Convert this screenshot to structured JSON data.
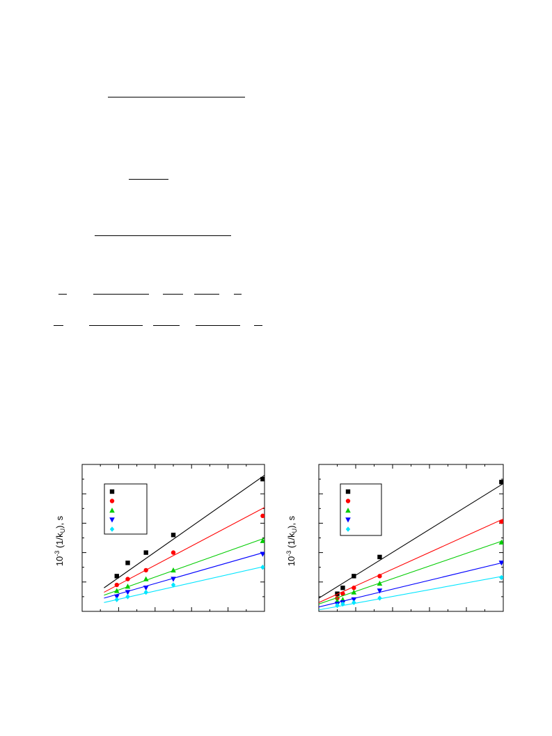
{
  "colors": {
    "black": "#000000",
    "red": "#ff0000",
    "green": "#00cc00",
    "blue": "#0000ff",
    "cyan": "#00e5ff"
  },
  "chart_data": [
    {
      "type": "scatter",
      "ylabel_main": "10",
      "ylabel_sup": "-3",
      "ylabel_mid": " (1/k",
      "ylabel_sub": "U",
      "ylabel_tail": "), s",
      "xlim": [
        0,
        10
      ],
      "ylim": [
        0,
        10
      ],
      "grid": false,
      "legend_position": "top-left",
      "series": [
        {
          "color": "black",
          "marker": "square",
          "x": [
            1.9,
            2.5,
            3.5,
            5.0,
            9.9
          ],
          "y": [
            2.4,
            3.3,
            4.0,
            5.2,
            9.0
          ],
          "fit": [
            [
              1.2,
              1.6
            ],
            [
              10.5,
              9.7
            ]
          ]
        },
        {
          "color": "red",
          "marker": "circle",
          "x": [
            1.9,
            2.5,
            3.5,
            5.0,
            9.9
          ],
          "y": [
            1.8,
            2.2,
            2.8,
            4.0,
            6.5
          ],
          "fit": [
            [
              1.2,
              1.3
            ],
            [
              10.5,
              7.4
            ]
          ]
        },
        {
          "color": "green",
          "marker": "triangle-up",
          "x": [
            1.9,
            2.5,
            3.5,
            5.0,
            9.9
          ],
          "y": [
            1.4,
            1.7,
            2.2,
            2.8,
            4.8
          ],
          "fit": [
            [
              1.2,
              1.1
            ],
            [
              10.5,
              5.2
            ]
          ]
        },
        {
          "color": "blue",
          "marker": "triangle-down",
          "x": [
            1.9,
            2.5,
            3.5,
            5.0,
            9.9
          ],
          "y": [
            1.0,
            1.3,
            1.6,
            2.2,
            3.9
          ],
          "fit": [
            [
              1.2,
              0.9
            ],
            [
              10.5,
              4.2
            ]
          ]
        },
        {
          "color": "cyan",
          "marker": "diamond",
          "x": [
            1.9,
            2.5,
            3.5,
            5.0,
            9.9
          ],
          "y": [
            0.8,
            1.0,
            1.3,
            1.8,
            3.0
          ],
          "fit": [
            [
              1.2,
              0.6
            ],
            [
              10.5,
              3.2
            ]
          ]
        }
      ]
    },
    {
      "type": "scatter",
      "ylabel_main": "10",
      "ylabel_sup": "-3",
      "ylabel_mid": " (1/k",
      "ylabel_sub": "U",
      "ylabel_tail": "), s",
      "xlim": [
        0,
        10
      ],
      "ylim": [
        0,
        10
      ],
      "grid": false,
      "legend_position": "top-left",
      "series": [
        {
          "color": "black",
          "marker": "square",
          "x": [
            1.0,
            1.3,
            1.9,
            3.3,
            9.9
          ],
          "y": [
            1.2,
            1.6,
            2.4,
            3.7,
            8.8
          ],
          "fit": [
            [
              0,
              0.9
            ],
            [
              10.9,
              9.4
            ]
          ]
        },
        {
          "color": "red",
          "marker": "circle",
          "x": [
            1.0,
            1.3,
            1.9,
            3.3,
            9.9
          ],
          "y": [
            0.9,
            1.2,
            1.6,
            2.4,
            6.1
          ],
          "fit": [
            [
              0,
              0.6
            ],
            [
              10.9,
              6.8
            ]
          ]
        },
        {
          "color": "green",
          "marker": "triangle-up",
          "x": [
            1.0,
            1.3,
            1.9,
            3.3,
            9.9
          ],
          "y": [
            0.7,
            0.8,
            1.3,
            1.9,
            4.7
          ],
          "fit": [
            [
              0,
              0.5
            ],
            [
              10.9,
              5.2
            ]
          ]
        },
        {
          "color": "blue",
          "marker": "triangle-down",
          "x": [
            1.0,
            1.3,
            1.9,
            3.3,
            9.9
          ],
          "y": [
            0.5,
            0.6,
            0.8,
            1.4,
            3.3
          ],
          "fit": [
            [
              0,
              0.3
            ],
            [
              10.9,
              3.6
            ]
          ]
        },
        {
          "color": "cyan",
          "marker": "diamond",
          "x": [
            1.0,
            1.3,
            1.9,
            3.3,
            9.9
          ],
          "y": [
            0.4,
            0.5,
            0.6,
            0.9,
            2.3
          ],
          "fit": [
            [
              0,
              0.1
            ],
            [
              10.9,
              2.6
            ]
          ]
        }
      ]
    }
  ]
}
